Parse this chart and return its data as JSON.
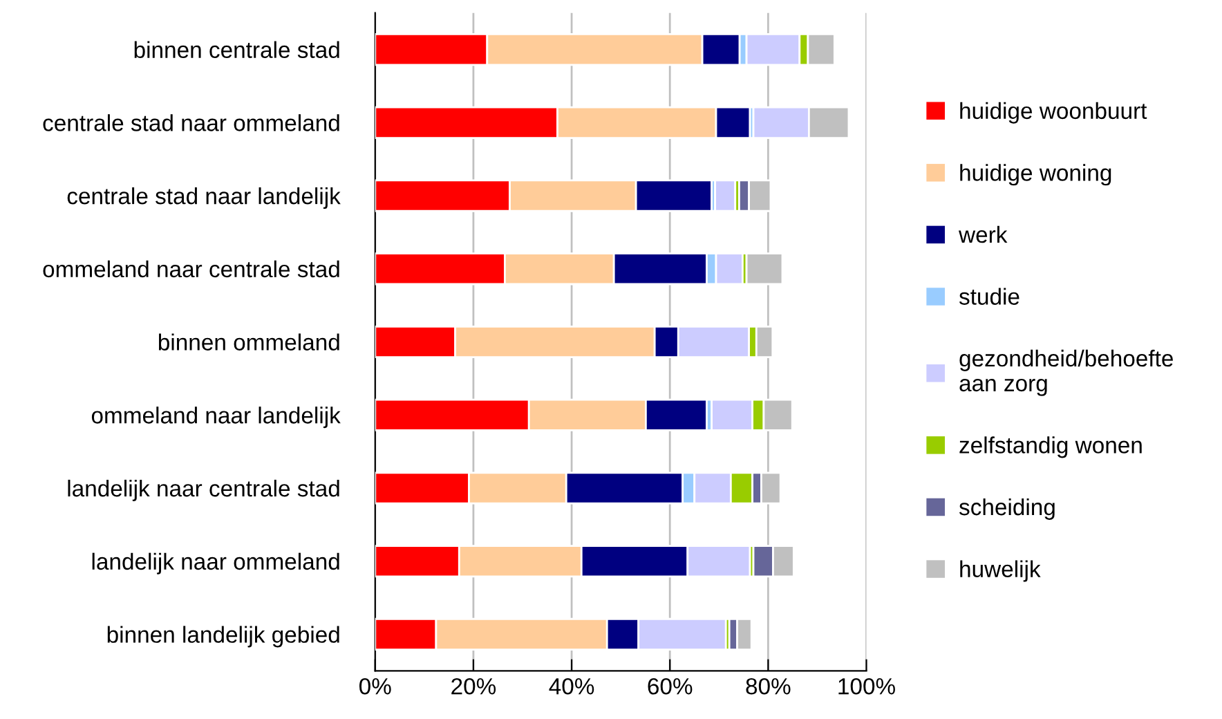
{
  "chart_data": {
    "type": "bar",
    "orientation": "horizontal",
    "stacked": true,
    "grid": "x",
    "legend": "right",
    "categories": [
      "binnen centrale stad",
      "centrale stad naar ommeland",
      "centrale stad naar landelijk",
      "ommeland naar centrale stad",
      "binnen ommeland",
      "ommeland naar landelijk",
      "landelijk naar centrale stad",
      "landelijk naar ommeland",
      "binnen landelijk gebied"
    ],
    "xlim": [
      0,
      100
    ],
    "xticks": [
      {
        "value": 0,
        "label": "0%"
      },
      {
        "value": 20,
        "label": "20%"
      },
      {
        "value": 40,
        "label": "40%"
      },
      {
        "value": 60,
        "label": "60%"
      },
      {
        "value": 80,
        "label": "80%"
      },
      {
        "value": 100,
        "label": "100%"
      }
    ],
    "series": [
      {
        "name": "huidige woonbuurt",
        "color": "#ff0000",
        "values": [
          22.8,
          37.1,
          27.4,
          26.4,
          16.3,
          31.3,
          19.1,
          17.1,
          12.4
        ]
      },
      {
        "name": "huidige woning",
        "color": "#ffcc99",
        "values": [
          43.8,
          32.3,
          25.7,
          22.2,
          40.6,
          23.8,
          19.8,
          24.9,
          34.8
        ]
      },
      {
        "name": "werk",
        "color": "#000080",
        "values": [
          7.6,
          6.9,
          15.4,
          18.9,
          4.8,
          12.4,
          23.7,
          21.6,
          6.4
        ]
      },
      {
        "name": "studie",
        "color": "#99ccff",
        "values": [
          1.4,
          0.7,
          0.7,
          1.9,
          null,
          1.0,
          2.4,
          0,
          0
        ]
      },
      {
        "name": "gezondheid/behoefte\naan zorg",
        "color": "#ccccff",
        "values": [
          10.8,
          11.3,
          4.1,
          5.4,
          14.4,
          8.3,
          7.4,
          12.7,
          17.8
        ]
      },
      {
        "name": "zelfstandig wonen",
        "color": "#99cc00",
        "values": [
          1.7,
          0,
          0.8,
          0.8,
          1.5,
          2.3,
          4.4,
          0.7,
          0.7
        ]
      },
      {
        "name": "scheiding",
        "color": "#666699",
        "values": [
          0,
          0,
          2.0,
          0,
          0,
          0,
          1.8,
          4.0,
          1.6
        ]
      },
      {
        "name": "huwelijk",
        "color": "#c0c0c0",
        "values": [
          5.4,
          8.1,
          4.4,
          7.3,
          3.3,
          5.8,
          3.9,
          4.2,
          2.9
        ]
      }
    ]
  }
}
